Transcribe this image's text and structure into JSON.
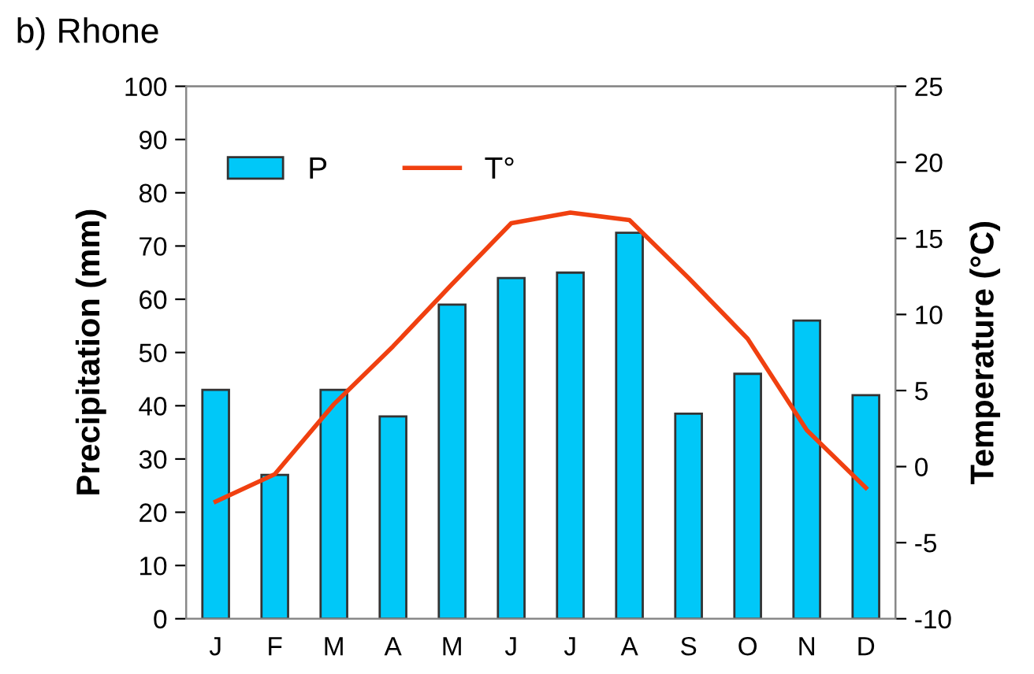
{
  "chart_data": {
    "type": "bar",
    "title": "b) Rhone",
    "ylabel": "Precipitation (mm)",
    "y2label": "Temperature (°C)",
    "categories": [
      "J",
      "F",
      "M",
      "A",
      "M",
      "J",
      "J",
      "A",
      "S",
      "O",
      "N",
      "D"
    ],
    "series": [
      {
        "name": "P",
        "color": "#00c8f8",
        "values": [
          43,
          27,
          43,
          38,
          59,
          64,
          65,
          72.5,
          38.5,
          46,
          56,
          42
        ]
      },
      {
        "name": "T°",
        "type": "line",
        "axis": "y2",
        "color": "#f04010",
        "values": [
          -2.3,
          -0.5,
          4.1,
          7.9,
          12,
          16,
          16.7,
          16.2,
          12.4,
          8.4,
          2.4,
          -1.4
        ]
      }
    ],
    "ylim": [
      0,
      100
    ],
    "yticks": [
      0,
      10,
      20,
      30,
      40,
      50,
      60,
      70,
      80,
      90,
      100
    ],
    "y2lim": [
      -10,
      25
    ],
    "y2ticks": [
      -10,
      -5,
      0,
      5,
      10,
      15,
      20,
      25
    ],
    "grid": false,
    "legend": "top left"
  }
}
